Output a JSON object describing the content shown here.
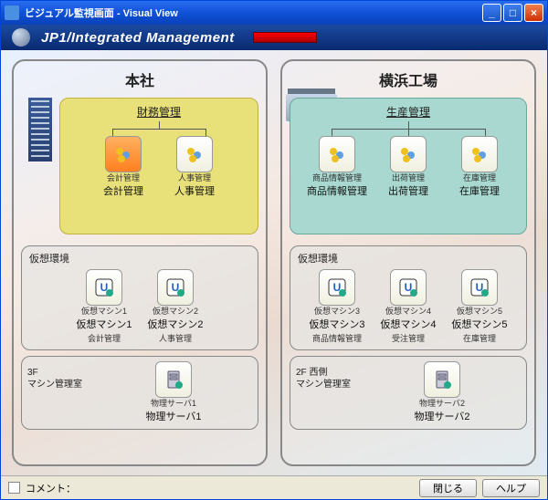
{
  "window": {
    "title": "ビジュアル監視画面 - Visual View",
    "product": "JP1/Integrated Management",
    "indicator_color": "#e00000"
  },
  "sites": {
    "hq": {
      "title": "本社",
      "domain_label": "財務管理",
      "nodes": [
        {
          "caption": "会計管理",
          "label": "会計管理",
          "alert": true
        },
        {
          "caption": "人事管理",
          "label": "人事管理",
          "alert": false
        }
      ],
      "venv": {
        "section_title": "仮想環境",
        "vms": [
          {
            "caption": "仮想マシン1",
            "label": "仮想マシン1",
            "sub": "会計管理"
          },
          {
            "caption": "仮想マシン2",
            "label": "仮想マシン2",
            "sub": "人事管理"
          }
        ]
      },
      "phys": {
        "room_line1": "3F",
        "room_line2": "マシン管理室",
        "servers": [
          {
            "caption": "物理サーバ1",
            "label": "物理サーバ1"
          }
        ]
      }
    },
    "factory": {
      "title": "横浜工場",
      "domain_label": "生産管理",
      "nodes": [
        {
          "caption": "商品情報管理",
          "label": "商品情報管理"
        },
        {
          "caption": "出荷管理",
          "label": "出荷管理"
        },
        {
          "caption": "在庫管理",
          "label": "在庫管理"
        }
      ],
      "venv": {
        "section_title": "仮想環境",
        "vms": [
          {
            "caption": "仮想マシン3",
            "label": "仮想マシン3",
            "sub": "商品情報管理"
          },
          {
            "caption": "仮想マシン4",
            "label": "仮想マシン4",
            "sub": "受注管理"
          },
          {
            "caption": "仮想マシン5",
            "label": "仮想マシン5",
            "sub": "在庫管理"
          }
        ]
      },
      "phys": {
        "room_line1": "2F 西側",
        "room_line2": "マシン管理室",
        "servers": [
          {
            "caption": "物理サーバ2",
            "label": "物理サーバ2"
          }
        ]
      }
    }
  },
  "footer": {
    "comment_label": "コメント：",
    "close_btn": "閉じる",
    "help_btn": "ヘルプ"
  },
  "style": {
    "hq_box_bg": "#e8e078",
    "fac_box_bg": "#a8d8d0",
    "alert_bg": "#ff9030"
  }
}
